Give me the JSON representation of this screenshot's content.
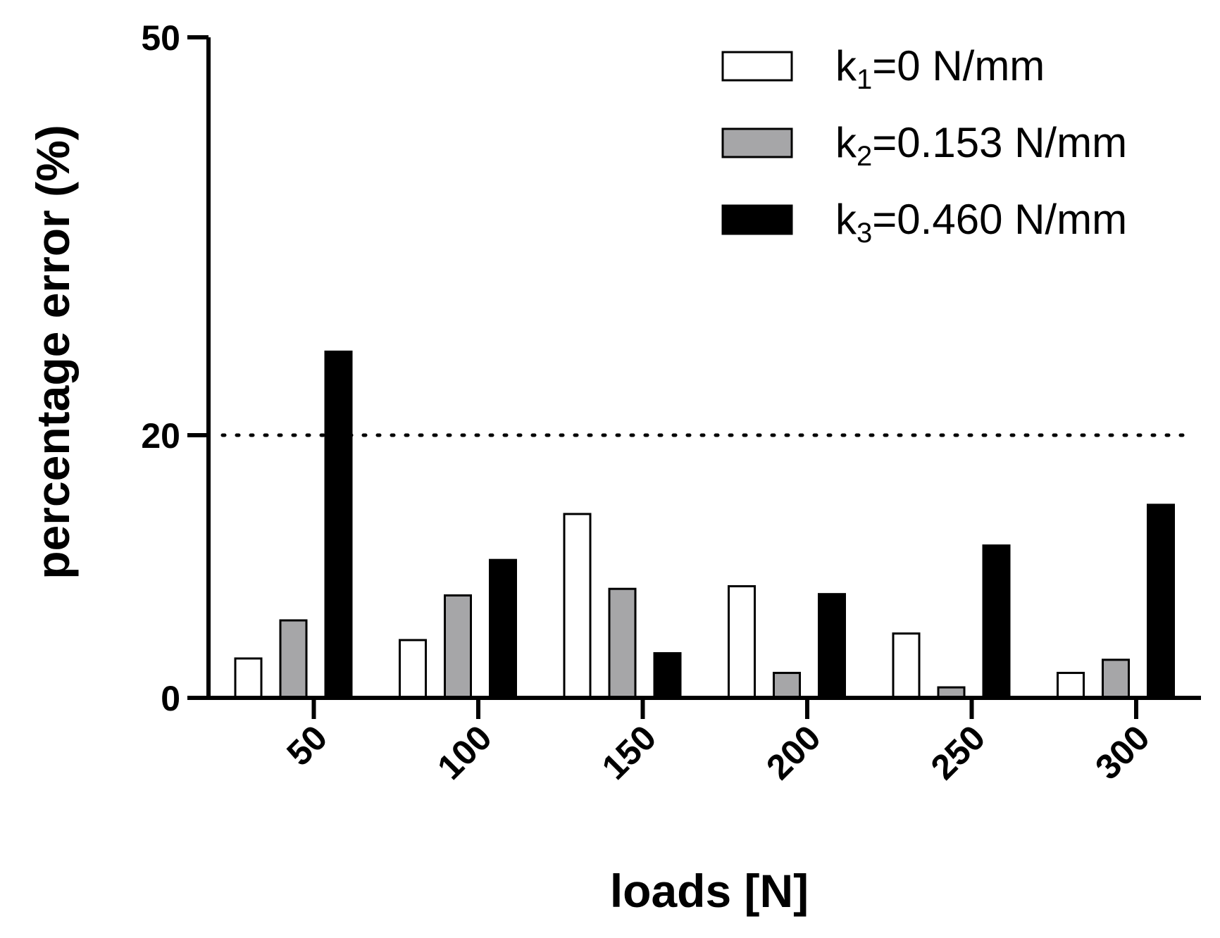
{
  "chart_data": {
    "type": "bar",
    "title": "",
    "xlabel": "loads [N]",
    "ylabel": "percentage error (%)",
    "categories": [
      "50",
      "100",
      "150",
      "200",
      "250",
      "300"
    ],
    "y_ticks": [
      {
        "value": 0,
        "label": "0"
      },
      {
        "value": 20,
        "label": "20"
      },
      {
        "value": 50,
        "label": "50"
      }
    ],
    "ylim": [
      0,
      50
    ],
    "reference_line": {
      "value": 20,
      "style": "dotted"
    },
    "legend_position": "top-right",
    "series": [
      {
        "name": "k1=0 N/mm",
        "legend_base": "k",
        "legend_sub": "1",
        "legend_rest": "=0 N/mm",
        "color": "#ffffff",
        "values": [
          3,
          4.4,
          14,
          8.5,
          4.9,
          1.9
        ]
      },
      {
        "name": "k2=0.153 N/mm",
        "legend_base": "k",
        "legend_sub": "2",
        "legend_rest": "=0.153 N/mm",
        "color": "#a6a6a8",
        "values": [
          5.9,
          7.8,
          8.3,
          1.9,
          0.8,
          2.9
        ]
      },
      {
        "name": "k3=0.460 N/mm",
        "legend_base": "k",
        "legend_sub": "3",
        "legend_rest": "=0.460 N/mm",
        "color": "#000000",
        "values": [
          26.3,
          10.5,
          3.4,
          7.9,
          11.6,
          14.7
        ]
      }
    ]
  }
}
